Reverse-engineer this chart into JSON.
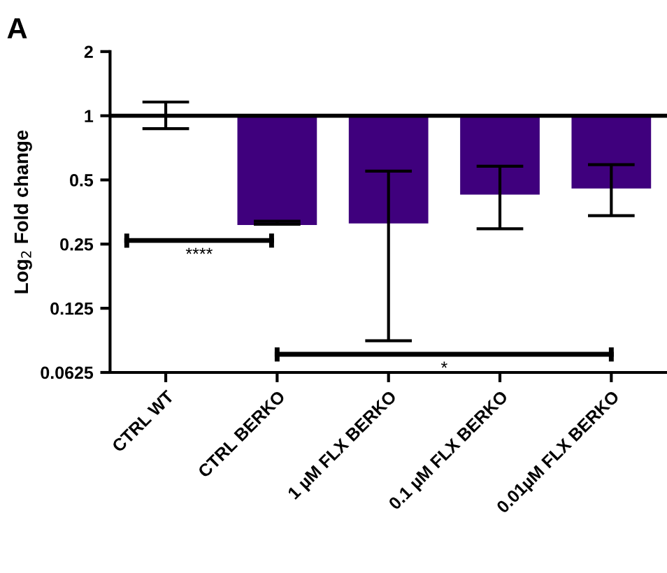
{
  "chart_data": {
    "type": "bar",
    "ylabel": "Log$_{2}$ Fold change",
    "categories": [
      "CTRL WT",
      "CTRL BERKO",
      "1 µM FLX BERKO",
      "0.1 µM FLX BERKO",
      "0.01µM FLX BERKO"
    ],
    "values": [
      0,
      -0.69,
      -0.685,
      -0.57,
      -0.54
    ],
    "base": [
      1,
      1,
      1,
      1,
      1
    ],
    "errors": [
      [
        0.87,
        1.16
      ],
      [
        0.31,
        0.32
      ],
      [
        0.088,
        0.55
      ],
      [
        0.295,
        0.58
      ],
      [
        0.34,
        0.59
      ]
    ],
    "colors": [
      "#3f007d",
      "#3f007d",
      "#3f007d",
      "#3f007d",
      "#3f007d"
    ],
    "log": "y",
    "ylim": [
      0.0625,
      2
    ],
    "yticks": [
      0.0625,
      0.125,
      0.25,
      0.5,
      1,
      2
    ],
    "ref_lines": [
      {
        "axis": "y",
        "value": 1,
        "color": "#000000"
      }
    ],
    "grid": false,
    "legend": false,
    "annotations": [
      "A",
      "****",
      "*"
    ]
  }
}
